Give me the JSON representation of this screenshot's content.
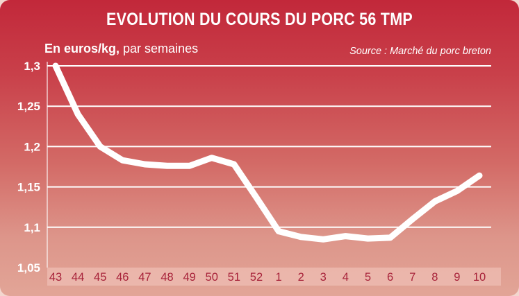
{
  "title": "EVOLUTION DU COURS DU PORC 56 TMP",
  "subtitle": {
    "unit": "En euros/kg,",
    "period": " par semaines"
  },
  "source": "Source : Marché du porc breton",
  "colors": {
    "line": "#ffffff",
    "grid": "#ffffff",
    "tick_x": "#a8233a"
  },
  "chart_data": {
    "type": "line",
    "title": "EVOLUTION DU COURS DU PORC 56 TMP",
    "ylabel": "En euros/kg, par semaines",
    "categories": [
      "43",
      "44",
      "45",
      "46",
      "47",
      "48",
      "49",
      "50",
      "51",
      "52",
      "1",
      "2",
      "3",
      "4",
      "5",
      "6",
      "7",
      "8",
      "9",
      "10"
    ],
    "ylim": [
      1.05,
      1.3
    ],
    "yticks": [
      "1,3",
      "1,25",
      "1,2",
      "1,15",
      "1,1",
      "1,05"
    ],
    "ytick_values": [
      1.3,
      1.25,
      1.2,
      1.15,
      1.1,
      1.05
    ],
    "grid": true,
    "series": [
      {
        "values": [
          1.3,
          1.24,
          1.2,
          1.183,
          1.178,
          1.176,
          1.176,
          1.186,
          1.178,
          1.137,
          1.095,
          1.088,
          1.085,
          1.089,
          1.086,
          1.087,
          1.11,
          1.132,
          1.145,
          1.164
        ]
      }
    ]
  }
}
